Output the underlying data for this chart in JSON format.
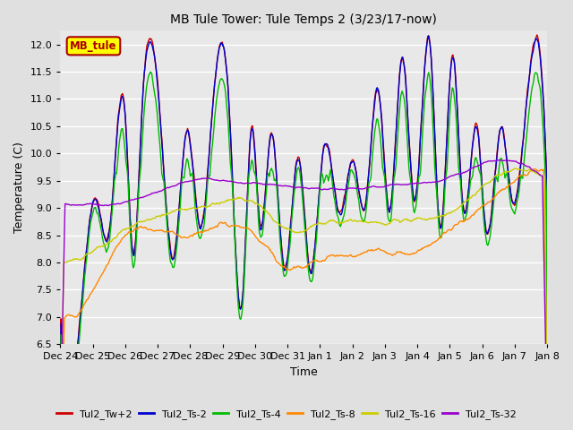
{
  "title": "MB Tule Tower: Tule Temps 2 (3/23/17-now)",
  "xlabel": "Time",
  "ylabel": "Temperature (C)",
  "ylim": [
    6.5,
    12.25
  ],
  "yticks": [
    6.5,
    7.0,
    7.5,
    8.0,
    8.5,
    9.0,
    9.5,
    10.0,
    10.5,
    11.0,
    11.5,
    12.0
  ],
  "xtick_labels": [
    "Dec 24",
    "Dec 25",
    "Dec 26",
    "Dec 27",
    "Dec 28",
    "Dec 29",
    "Dec 30",
    "Dec 31",
    "Jan 1",
    "Jan 2",
    "Jan 3",
    "Jan 4",
    "Jan 5",
    "Jan 6",
    "Jan 7",
    "Jan 8"
  ],
  "background_color": "#e0e0e0",
  "plot_bg_color": "#e8e8e8",
  "grid_color": "#ffffff",
  "legend_box_color": "#ffff00",
  "legend_box_text": "MB_tule",
  "legend_box_text_color": "#aa0000",
  "series_colors": {
    "Tul2_Tw+2": "#cc0000",
    "Tul2_Ts-2": "#0000cc",
    "Tul2_Ts-4": "#00bb00",
    "Tul2_Ts-8": "#ff8800",
    "Tul2_Ts-16": "#cccc00",
    "Tul2_Ts-32": "#9900cc"
  },
  "peak_days": [
    1.1,
    2.0,
    2.5,
    3.1,
    3.9,
    4.7,
    5.2,
    5.9,
    6.5,
    7.35,
    8.1,
    9.0,
    9.8,
    10.55,
    11.4,
    12.1,
    12.85,
    13.6,
    14.3
  ],
  "peak_heights": [
    9.2,
    10.7,
    10.6,
    10.5,
    10.45,
    10.9,
    10.9,
    10.5,
    10.4,
    9.95,
    10.05,
    9.9,
    11.2,
    11.8,
    12.0,
    11.85,
    10.5,
    10.5,
    10.5
  ],
  "valley_days": [
    0.0,
    0.6,
    1.5,
    2.25,
    3.5,
    4.3,
    5.6,
    6.15,
    6.9,
    7.7,
    8.65,
    9.4,
    10.15,
    10.9,
    11.7,
    12.4,
    13.1,
    13.9,
    15.0
  ],
  "valley_heights": [
    7.15,
    6.9,
    8.55,
    8.1,
    8.1,
    8.65,
    7.25,
    8.7,
    7.9,
    7.85,
    8.9,
    9.05,
    8.95,
    9.15,
    8.65,
    9.1,
    8.65,
    9.2,
    9.3
  ]
}
